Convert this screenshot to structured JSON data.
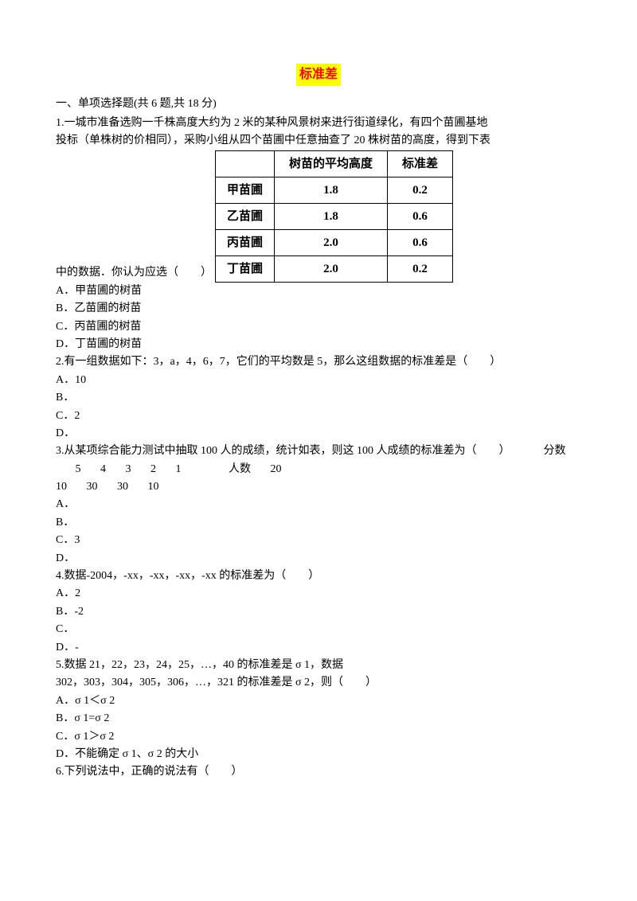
{
  "title": "标准差",
  "section1": "一、单项选择题(共 6 题,共 18 分)",
  "q1": {
    "stem_a": "1.一城市准备选购一千株高度大约为 2 米的某种风景树来进行街道绿化，有四个苗圃基地",
    "stem_b": "投标（单株树的价相同），采购小组从四个苗圃中任意抽查了 20 株树苗的高度，得到下表",
    "stem_c": "中的数据．你认为应选（　　）",
    "table": {
      "headers": [
        "",
        "树苗的平均高度",
        "标准差"
      ],
      "rows": [
        [
          "甲苗圃",
          "1.8",
          "0.2"
        ],
        [
          "乙苗圃",
          "1.8",
          "0.6"
        ],
        [
          "丙苗圃",
          "2.0",
          "0.6"
        ],
        [
          "丁苗圃",
          "2.0",
          "0.2"
        ]
      ]
    },
    "A": "A．甲苗圃的树苗",
    "B": "B．乙苗圃的树苗",
    "C": "C．丙苗圃的树苗",
    "D": "D．丁苗圃的树苗"
  },
  "q2": {
    "stem": "2.有一组数据如下：3，a，4，6，7，它们的平均数是 5，那么这组数据的标准差是（　　）",
    "A": "A．10",
    "B": "B．",
    "C": "C．2",
    "D": "D．"
  },
  "q3": {
    "stem": "3.从某项综合能力测试中抽取 100 人的成绩，统计如表，则这 100 人成绩的标准差为（　　）",
    "row_labels": {
      "score": "分数",
      "count": "人数"
    },
    "scores": [
      "5",
      "4",
      "3",
      "2",
      "1"
    ],
    "counts": [
      "20",
      "10",
      "30",
      "30",
      "10"
    ],
    "A": "A．",
    "B": "B．",
    "C": "C．3",
    "D": "D．"
  },
  "q4": {
    "stem": "4.数据-2004，-xx，-xx，-xx，-xx 的标准差为（　　）",
    "A": "A．2",
    "B": "B．-2",
    "C": "C．",
    "D": "D．-"
  },
  "q5": {
    "stem_a": "5.数据 21，22，23，24，25，…，40 的标准差是 σ 1，数据",
    "stem_b": "302，303，304，305，306，…，321 的标准差是 σ 2，则（　　）",
    "A": "A．σ 1＜σ 2",
    "B": "B．σ 1=σ 2",
    "C": "C．σ 1＞σ 2",
    "D": "D．不能确定 σ 1、σ 2 的大小"
  },
  "q6": {
    "stem": "6.下列说法中，正确的说法有（　　）"
  }
}
